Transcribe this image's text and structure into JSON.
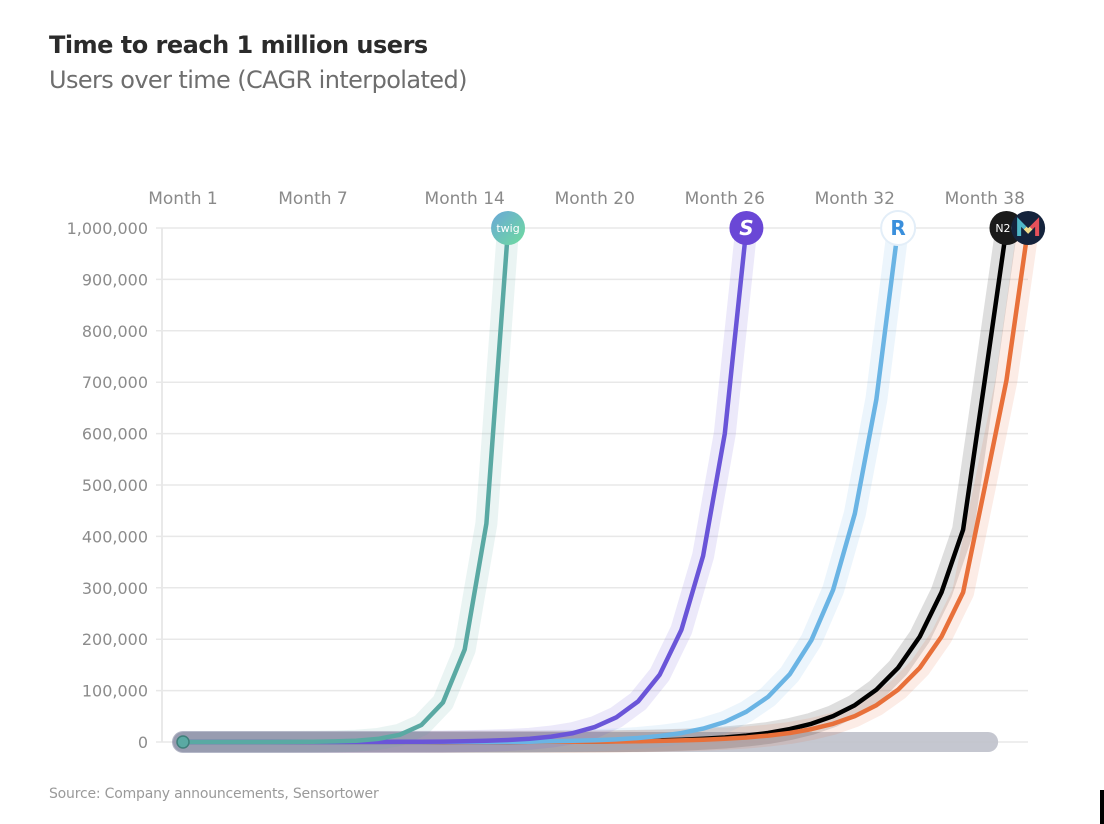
{
  "header": {
    "title": "Time to reach 1 million users",
    "subtitle": "Users over time (CAGR interpolated)"
  },
  "footer": {
    "source": "Source: Company announcements, Sensortower"
  },
  "chart_data": {
    "type": "line",
    "title": "Time to reach 1 million users",
    "subtitle": "Users over time (CAGR interpolated)",
    "xlabel": "",
    "ylabel": "",
    "x_axis_position": "top",
    "x_tick_labels": [
      {
        "month": 1,
        "label": "Month 1"
      },
      {
        "month": 7,
        "label": "Month 7"
      },
      {
        "month": 14,
        "label": "Month 14"
      },
      {
        "month": 20,
        "label": "Month 20"
      },
      {
        "month": 26,
        "label": "Month 26"
      },
      {
        "month": 32,
        "label": "Month 32"
      },
      {
        "month": 38,
        "label": "Month 38"
      }
    ],
    "xlim": [
      1,
      40
    ],
    "ylim": [
      0,
      1000000
    ],
    "y_ticks": [
      0,
      100000,
      200000,
      300000,
      400000,
      500000,
      600000,
      700000,
      800000,
      900000,
      1000000
    ],
    "y_tick_labels": [
      "0",
      "100,000",
      "200,000",
      "300,000",
      "400,000",
      "500,000",
      "600,000",
      "700,000",
      "800,000",
      "900,000",
      "1,000,000"
    ],
    "grid": true,
    "legend": "none (logo badges at line ends)",
    "series": [
      {
        "name": "twig",
        "color": "#5aa9a3",
        "badge": {
          "icon": "twig-logo-icon",
          "text": "twig",
          "bg_from": "#6aa7d8",
          "bg_to": "#6fdc9e",
          "fg": "#ffffff"
        },
        "months": [
          1,
          2,
          3,
          4,
          5,
          6,
          7,
          8,
          9,
          10,
          11,
          12,
          13,
          14,
          15,
          16
        ],
        "values": [
          0,
          6,
          15,
          35,
          80,
          200,
          450,
          1100,
          2500,
          6000,
          14000,
          33000,
          77000,
          180000,
          425000,
          1000000
        ]
      },
      {
        "name": "S app",
        "color": "#6a55d8",
        "badge": {
          "icon": "s-logo-icon",
          "text": "S",
          "bg_from": "#6a47d6",
          "bg_to": "#6a47d6",
          "fg": "#ffffff"
        },
        "months": [
          1,
          2,
          3,
          4,
          5,
          6,
          7,
          8,
          9,
          10,
          11,
          12,
          13,
          14,
          15,
          16,
          17,
          18,
          19,
          20,
          21,
          22,
          23,
          24,
          25,
          26,
          27
        ],
        "values": [
          0,
          3,
          5,
          9,
          14,
          24,
          40,
          65,
          110,
          180,
          300,
          500,
          830,
          1400,
          2300,
          3800,
          6300,
          10500,
          17400,
          29000,
          48000,
          79000,
          131000,
          218000,
          362000,
          600000,
          1000000
        ]
      },
      {
        "name": "Revolut",
        "color": "#6ab4e4",
        "badge": {
          "icon": "revolut-r-logo-icon",
          "text": "R",
          "bg_from": "#ffffff",
          "bg_to": "#ffffff",
          "fg": "#3a8fdc"
        },
        "months": [
          1,
          2,
          3,
          4,
          5,
          6,
          7,
          8,
          9,
          10,
          11,
          12,
          13,
          14,
          15,
          16,
          17,
          18,
          19,
          20,
          21,
          22,
          23,
          24,
          25,
          26,
          27,
          28,
          29,
          30,
          31,
          32,
          33,
          34
        ],
        "values": [
          0,
          1,
          2,
          3,
          4,
          6,
          9,
          13,
          20,
          30,
          45,
          68,
          100,
          150,
          230,
          340,
          510,
          1500,
          2300,
          3400,
          5100,
          7700,
          11600,
          17300,
          26000,
          39000,
          59000,
          88000,
          132000,
          198000,
          296000,
          444000,
          667000,
          1000000
        ]
      },
      {
        "name": "N26",
        "color": "#000000",
        "badge": {
          "icon": "n26-logo-icon",
          "text": "N26",
          "bg_from": "#1a1a1a",
          "bg_to": "#1a1a1a",
          "fg": "#ffffff"
        },
        "months": [
          1,
          2,
          3,
          4,
          5,
          6,
          7,
          8,
          9,
          10,
          11,
          12,
          13,
          14,
          15,
          16,
          17,
          18,
          19,
          20,
          21,
          22,
          23,
          24,
          25,
          26,
          27,
          28,
          29,
          30,
          31,
          32,
          33,
          34,
          35,
          36,
          37,
          38,
          39
        ],
        "values": [
          0,
          2,
          3,
          4,
          6,
          8,
          11,
          16,
          23,
          32,
          46,
          65,
          92,
          130,
          185,
          263,
          373,
          530,
          752,
          1070,
          1520,
          2150,
          3060,
          4340,
          6160,
          8750,
          12400,
          17600,
          25000,
          35500,
          50400,
          71600,
          101700,
          144400,
          205000,
          291000,
          413000,
          704000,
          1000000
        ]
      },
      {
        "name": "Monzo",
        "color": "#e8703a",
        "badge": {
          "icon": "monzo-m-logo-icon",
          "text": "M",
          "bg_from": "#14233c",
          "bg_to": "#14233c",
          "fg": "#ffffff"
        },
        "months": [
          1,
          2,
          3,
          4,
          5,
          6,
          7,
          8,
          9,
          10,
          11,
          12,
          13,
          14,
          15,
          16,
          17,
          18,
          19,
          20,
          21,
          22,
          23,
          24,
          25,
          26,
          27,
          28,
          29,
          30,
          31,
          32,
          33,
          34,
          35,
          36,
          37,
          38,
          39,
          40
        ],
        "values": [
          0,
          1,
          2,
          3,
          4,
          6,
          8,
          11,
          16,
          23,
          32,
          46,
          65,
          92,
          130,
          185,
          263,
          373,
          530,
          752,
          1070,
          1520,
          2150,
          3060,
          4340,
          6160,
          8750,
          12400,
          17600,
          25000,
          35500,
          50400,
          71600,
          101700,
          144400,
          205000,
          291000,
          496000,
          704000,
          1000000
        ]
      }
    ]
  }
}
